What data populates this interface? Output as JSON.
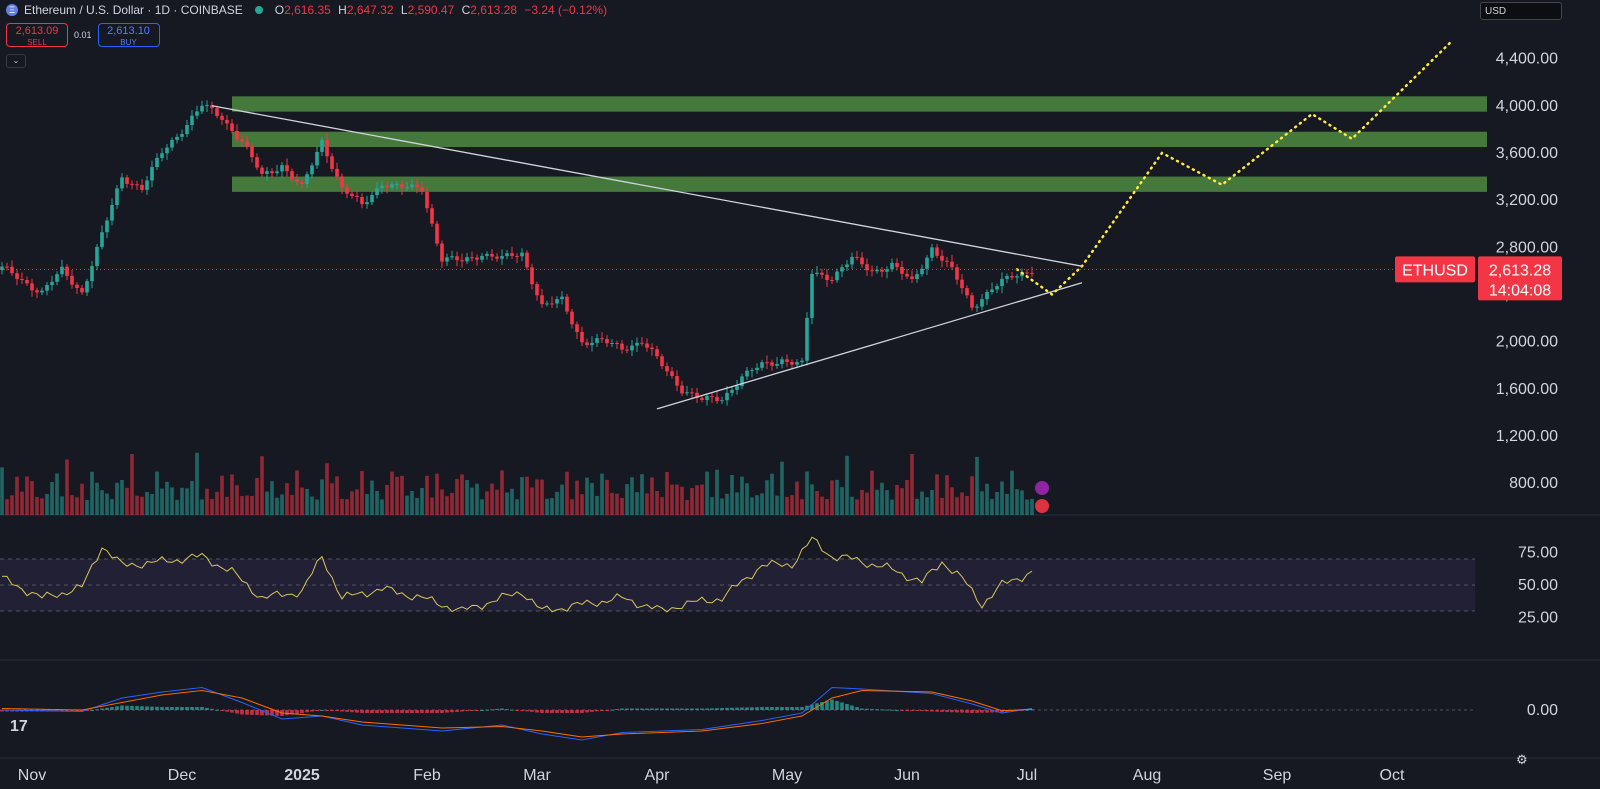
{
  "header": {
    "symbol": "Ethereum / U.S. Dollar · 1D · COINBASE",
    "symbol_icon": "ethereum-icon",
    "open_label": "O",
    "open": "2,616.35",
    "high_label": "H",
    "high": "2,647.32",
    "low_label": "L",
    "low": "2,590.47",
    "close_label": "C",
    "close": "2,613.28",
    "change": "−3.24 (−0.12%)"
  },
  "trade": {
    "sell_price": "2,613.09",
    "sell_label": "SELL",
    "spread": "0.01",
    "buy_price": "2,613.10",
    "buy_label": "BUY"
  },
  "currency": "USD",
  "price_label": {
    "symbol": "ETHUSD",
    "price": "2,613.28",
    "countdown": "14:04:08"
  },
  "colors": {
    "up": "#26a69a",
    "down": "#f23645",
    "zone": "#4e8a3f",
    "rsi": "#d7c75a",
    "macd": "#2962ff",
    "signal": "#ff6d00",
    "projection": "#ffeb3b",
    "trendline": "#d1d4dc"
  },
  "chart_data": {
    "type": "candlestick",
    "price_axis": {
      "ticks": [
        "4,400.00",
        "4,000.00",
        "3,600.00",
        "3,200.00",
        "2,800.00",
        "2,400.00",
        "2,000.00",
        "1,600.00",
        "1,200.00",
        "800.00"
      ],
      "range": [
        700,
        4600
      ]
    },
    "time_axis": [
      "Nov",
      "Dec",
      "2025",
      "Feb",
      "Mar",
      "Apr",
      "May",
      "Jun",
      "Jul",
      "Aug",
      "Sep",
      "Oct"
    ],
    "price_path": [
      [
        0,
        2620
      ],
      [
        8,
        2420
      ],
      [
        12,
        2600
      ],
      [
        16,
        2420
      ],
      [
        20,
        2900
      ],
      [
        24,
        3400
      ],
      [
        28,
        3300
      ],
      [
        32,
        3600
      ],
      [
        36,
        3800
      ],
      [
        40,
        4000
      ],
      [
        44,
        3900
      ],
      [
        48,
        3700
      ],
      [
        52,
        3400
      ],
      [
        56,
        3500
      ],
      [
        60,
        3300
      ],
      [
        64,
        3700
      ],
      [
        68,
        3300
      ],
      [
        72,
        3150
      ],
      [
        76,
        3350
      ],
      [
        80,
        3300
      ],
      [
        84,
        3300
      ],
      [
        88,
        2700
      ],
      [
        92,
        2680
      ],
      [
        96,
        2750
      ],
      [
        100,
        2700
      ],
      [
        104,
        2750
      ],
      [
        108,
        2300
      ],
      [
        112,
        2350
      ],
      [
        116,
        2000
      ],
      [
        120,
        2000
      ],
      [
        124,
        1950
      ],
      [
        128,
        2000
      ],
      [
        132,
        1800
      ],
      [
        136,
        1600
      ],
      [
        140,
        1500
      ],
      [
        144,
        1520
      ],
      [
        148,
        1700
      ],
      [
        152,
        1800
      ],
      [
        156,
        1850
      ],
      [
        160,
        1800
      ],
      [
        162,
        2580
      ],
      [
        166,
        2550
      ],
      [
        170,
        2700
      ],
      [
        174,
        2600
      ],
      [
        178,
        2650
      ],
      [
        182,
        2500
      ],
      [
        186,
        2800
      ],
      [
        190,
        2600
      ],
      [
        194,
        2300
      ],
      [
        198,
        2450
      ],
      [
        202,
        2550
      ],
      [
        206,
        2613
      ]
    ],
    "zones": [
      {
        "from": 3950,
        "to": 4080
      },
      {
        "from": 3650,
        "to": 3780
      },
      {
        "from": 3270,
        "to": 3400
      }
    ],
    "trendlines": [
      {
        "from": [
          42,
          4000
        ],
        "to": [
          216,
          2640
        ]
      },
      {
        "from": [
          131,
          1430
        ],
        "to": [
          216,
          2500
        ]
      }
    ],
    "projection": [
      [
        203,
        2613
      ],
      [
        210,
        2400
      ],
      [
        216,
        2640
      ],
      [
        232,
        3600
      ],
      [
        244,
        3330
      ],
      [
        262,
        3930
      ],
      [
        270,
        3720
      ],
      [
        290,
        4550
      ]
    ],
    "rsi": {
      "ticks": [
        "75.00",
        "50.00",
        "25.00"
      ],
      "upper": 70,
      "lower": 30,
      "values": [
        [
          0,
          55
        ],
        [
          8,
          40
        ],
        [
          16,
          48
        ],
        [
          20,
          80
        ],
        [
          24,
          65
        ],
        [
          32,
          68
        ],
        [
          40,
          72
        ],
        [
          46,
          60
        ],
        [
          52,
          40
        ],
        [
          60,
          45
        ],
        [
          64,
          72
        ],
        [
          68,
          40
        ],
        [
          76,
          47
        ],
        [
          84,
          40
        ],
        [
          92,
          30
        ],
        [
          100,
          40
        ],
        [
          104,
          45
        ],
        [
          108,
          30
        ],
        [
          116,
          35
        ],
        [
          124,
          40
        ],
        [
          132,
          30
        ],
        [
          136,
          35
        ],
        [
          144,
          40
        ],
        [
          152,
          65
        ],
        [
          158,
          66
        ],
        [
          162,
          85
        ],
        [
          166,
          72
        ],
        [
          170,
          70
        ],
        [
          178,
          62
        ],
        [
          184,
          52
        ],
        [
          188,
          68
        ],
        [
          192,
          55
        ],
        [
          196,
          35
        ],
        [
          200,
          50
        ],
        [
          206,
          60
        ]
      ]
    },
    "macd": {
      "zero_label": "0.00",
      "macd": [
        [
          0,
          0
        ],
        [
          16,
          -10
        ],
        [
          24,
          80
        ],
        [
          32,
          120
        ],
        [
          40,
          150
        ],
        [
          48,
          50
        ],
        [
          56,
          -60
        ],
        [
          64,
          -40
        ],
        [
          72,
          -100
        ],
        [
          88,
          -140
        ],
        [
          100,
          -100
        ],
        [
          108,
          -160
        ],
        [
          116,
          -200
        ],
        [
          124,
          -150
        ],
        [
          140,
          -130
        ],
        [
          152,
          -70
        ],
        [
          160,
          -20
        ],
        [
          166,
          150
        ],
        [
          172,
          140
        ],
        [
          186,
          110
        ],
        [
          194,
          40
        ],
        [
          200,
          -20
        ],
        [
          206,
          10
        ]
      ],
      "signal": [
        [
          0,
          10
        ],
        [
          16,
          0
        ],
        [
          24,
          50
        ],
        [
          32,
          100
        ],
        [
          40,
          130
        ],
        [
          48,
          80
        ],
        [
          56,
          -20
        ],
        [
          64,
          -40
        ],
        [
          72,
          -80
        ],
        [
          88,
          -120
        ],
        [
          100,
          -110
        ],
        [
          108,
          -140
        ],
        [
          116,
          -180
        ],
        [
          124,
          -160
        ],
        [
          140,
          -140
        ],
        [
          152,
          -90
        ],
        [
          160,
          -40
        ],
        [
          166,
          80
        ],
        [
          172,
          130
        ],
        [
          186,
          120
        ],
        [
          194,
          60
        ],
        [
          200,
          -5
        ],
        [
          206,
          5
        ]
      ]
    }
  }
}
